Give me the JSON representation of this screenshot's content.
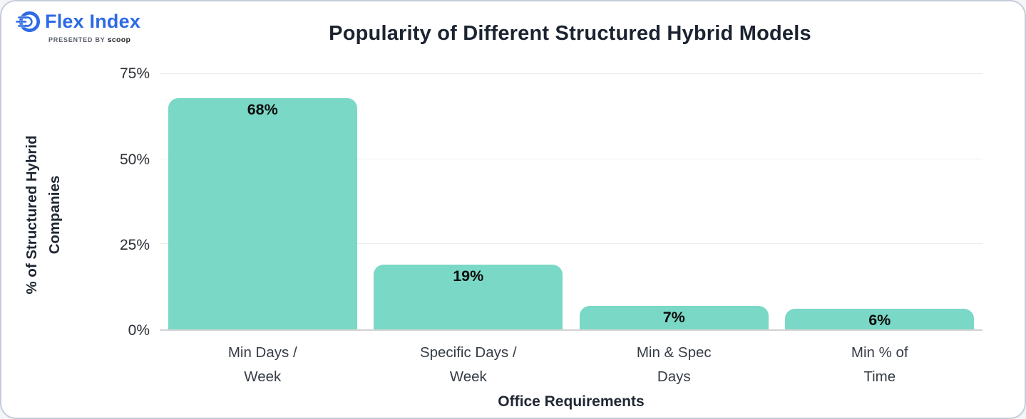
{
  "logo": {
    "brand": "Flex Index",
    "tagline_prefix": "PRESENTED BY ",
    "tagline_brand": "scoop"
  },
  "title": "Popularity of Different Structured Hybrid Models",
  "chart_data": {
    "type": "bar",
    "title": "Popularity of Different Structured Hybrid Models",
    "categories": [
      "Min Days /\nWeek",
      "Specific Days /\nWeek",
      "Min & Spec\nDays",
      "Min % of\nTime"
    ],
    "values": [
      68,
      19,
      7,
      6
    ],
    "value_labels": [
      "68%",
      "19%",
      "7%",
      "6%"
    ],
    "xlabel": "Office Requirements",
    "ylabel": "% of Structured Hybrid\nCompanies",
    "yticks": [
      {
        "label": "75%",
        "value": 75
      },
      {
        "label": "50%",
        "value": 50
      },
      {
        "label": "25%",
        "value": 25
      },
      {
        "label": "0%",
        "value": 0
      }
    ],
    "ylim": [
      0,
      78
    ],
    "grid": true,
    "legend": false,
    "colors": {
      "bar": "#7AD8C6",
      "brand_blue": "#2d6ae3",
      "title_text": "#1b2330",
      "grid_line": "#ececec",
      "baseline": "#d2d2d2",
      "card_border": "#c6cdda"
    }
  }
}
